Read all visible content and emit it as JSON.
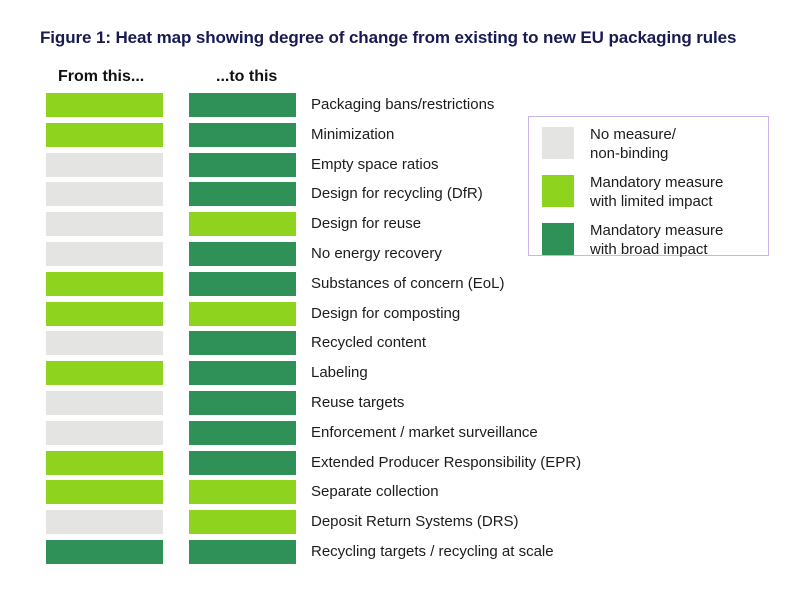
{
  "figure": {
    "title": "Figure 1: Heat map showing degree of change from existing to new EU packaging rules",
    "title_color": "#191a52"
  },
  "chart_data": {
    "type": "heatmap",
    "title": "Figure 1: Heat map showing degree of change from existing to new EU packaging rules",
    "columns": [
      {
        "key": "from",
        "label": "From this..."
      },
      {
        "key": "to",
        "label": "...to this"
      }
    ],
    "levels": {
      "none": "No measure/non-binding",
      "limited": "Mandatory measure with limited impact",
      "broad": "Mandatory measure with broad impact"
    },
    "colors": {
      "none": "#e4e4e3",
      "limited": "#8ed41f",
      "broad": "#2f9158"
    },
    "rows": [
      {
        "label": "Packaging bans/restrictions",
        "from": "limited",
        "to": "broad"
      },
      {
        "label": "Minimization",
        "from": "limited",
        "to": "broad"
      },
      {
        "label": "Empty space ratios",
        "from": "none",
        "to": "broad"
      },
      {
        "label": "Design for recycling (DfR)",
        "from": "none",
        "to": "broad"
      },
      {
        "label": "Design for reuse",
        "from": "none",
        "to": "limited"
      },
      {
        "label": "No energy recovery",
        "from": "none",
        "to": "broad"
      },
      {
        "label": "Substances of concern (EoL)",
        "from": "limited",
        "to": "broad"
      },
      {
        "label": "Design for composting",
        "from": "limited",
        "to": "limited"
      },
      {
        "label": "Recycled content",
        "from": "none",
        "to": "broad"
      },
      {
        "label": "Labeling",
        "from": "limited",
        "to": "broad"
      },
      {
        "label": "Reuse targets",
        "from": "none",
        "to": "broad"
      },
      {
        "label": "Enforcement / market surveillance",
        "from": "none",
        "to": "broad"
      },
      {
        "label": "Extended Producer Responsibility (EPR)",
        "from": "limited",
        "to": "broad"
      },
      {
        "label": "Separate collection",
        "from": "limited",
        "to": "limited"
      },
      {
        "label": "Deposit Return Systems (DRS)",
        "from": "none",
        "to": "limited"
      },
      {
        "label": "Recycling targets / recycling at scale",
        "from": "broad",
        "to": "broad"
      }
    ]
  },
  "legend": {
    "border_color": "#c9b5e9",
    "items": [
      {
        "level": "none",
        "label": "No measure/\nnon-binding"
      },
      {
        "level": "limited",
        "label": "Mandatory measure\nwith limited impact"
      },
      {
        "level": "broad",
        "label": "Mandatory measure\nwith broad impact"
      }
    ]
  }
}
